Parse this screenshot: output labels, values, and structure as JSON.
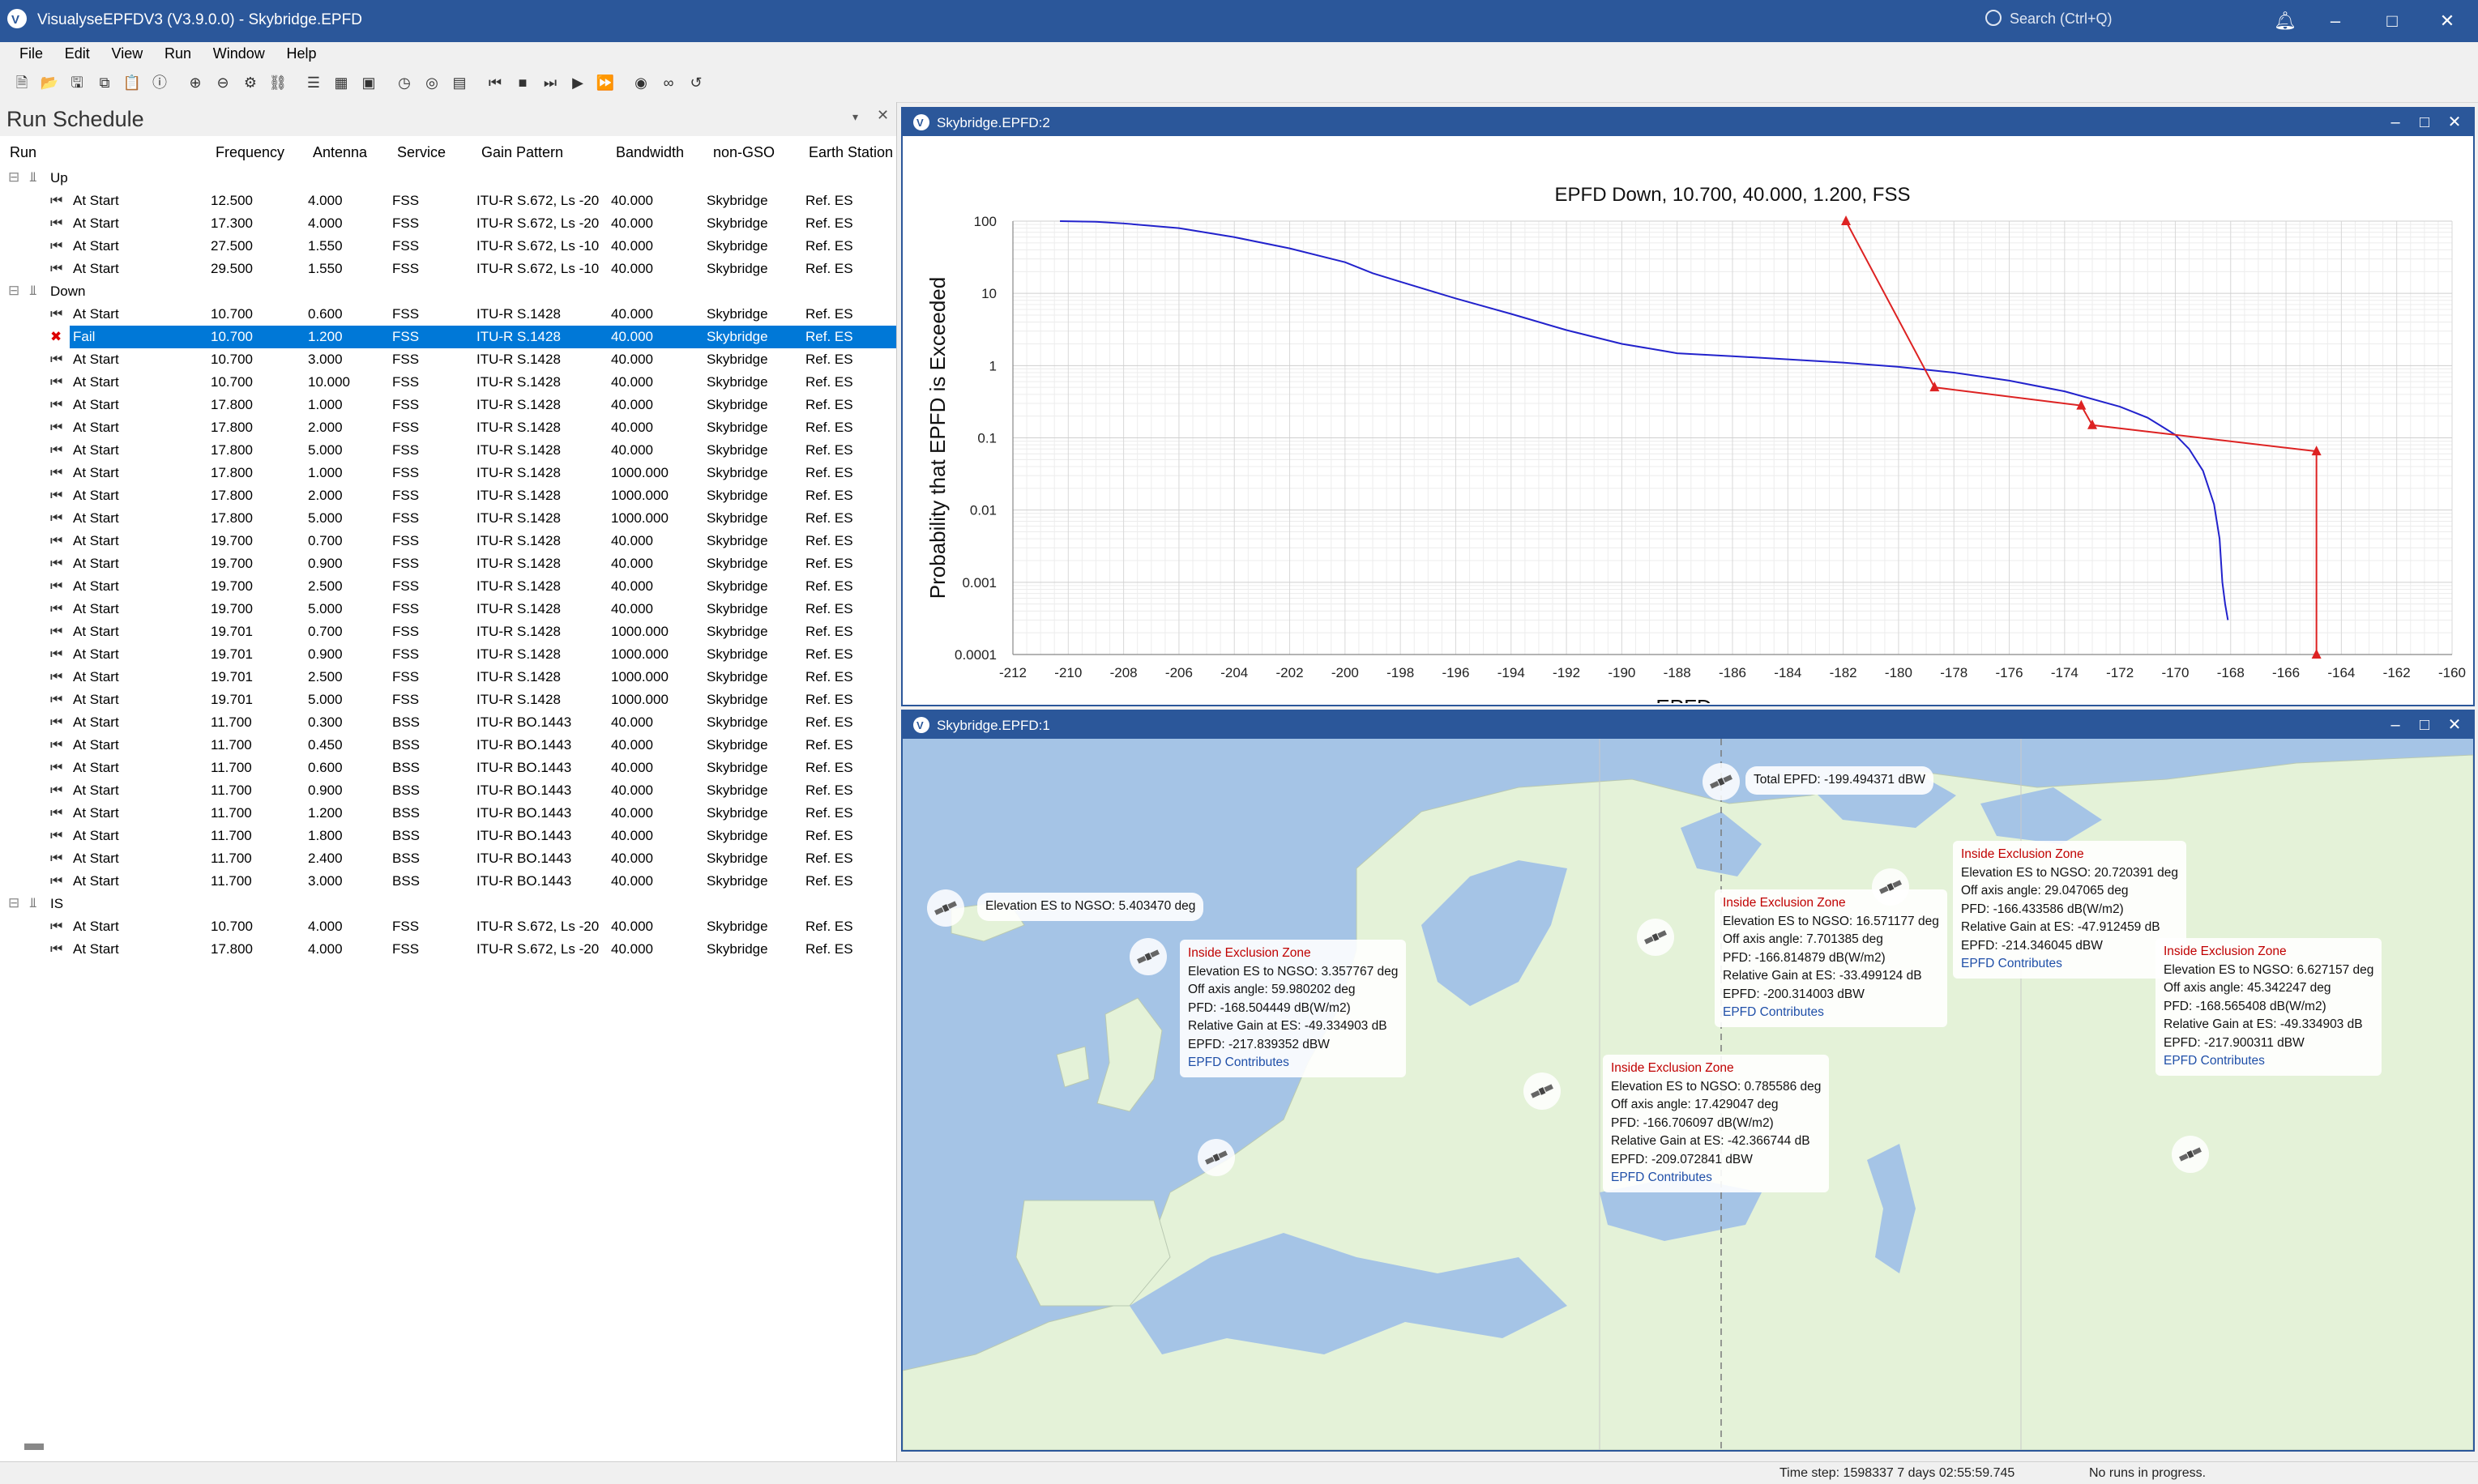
{
  "app": {
    "title": "VisualyseEPFDV3 (V3.9.0.0) - Skybridge.EPFD",
    "search_placeholder": "Search (Ctrl+Q)"
  },
  "menu": [
    "File",
    "Edit",
    "View",
    "Run",
    "Window",
    "Help"
  ],
  "toolbar_icons": [
    "new-icon",
    "open-icon",
    "save-icon",
    "copy-icon",
    "paste-icon",
    "info-icon",
    "zoom-in-icon",
    "zoom-out-icon",
    "settings-icon",
    "link-icon",
    "list-icon",
    "grid-icon",
    "image-icon",
    "clock-icon",
    "globe-icon",
    "table-icon",
    "skip-back-icon",
    "stop-icon",
    "step-icon",
    "play-icon",
    "fast-forward-icon",
    "run-icon",
    "link2-icon",
    "reset-icon"
  ],
  "run_schedule": {
    "title": "Run Schedule",
    "columns": [
      "Run",
      "Frequency",
      "Antenna",
      "Service",
      "Gain Pattern",
      "Bandwidth",
      "non-GSO",
      "Earth Station"
    ],
    "groups": [
      {
        "name": "Up",
        "rows": [
          [
            "At Start",
            "12.500",
            "4.000",
            "FSS",
            "ITU-R S.672, Ls -20",
            "40.000",
            "Skybridge",
            "Ref. ES"
          ],
          [
            "At Start",
            "17.300",
            "4.000",
            "FSS",
            "ITU-R S.672, Ls -20",
            "40.000",
            "Skybridge",
            "Ref. ES"
          ],
          [
            "At Start",
            "27.500",
            "1.550",
            "FSS",
            "ITU-R S.672, Ls -10",
            "40.000",
            "Skybridge",
            "Ref. ES"
          ],
          [
            "At Start",
            "29.500",
            "1.550",
            "FSS",
            "ITU-R S.672, Ls -10",
            "40.000",
            "Skybridge",
            "Ref. ES"
          ]
        ]
      },
      {
        "name": "Down",
        "rows": [
          [
            "At Start",
            "10.700",
            "0.600",
            "FSS",
            "ITU-R S.1428",
            "40.000",
            "Skybridge",
            "Ref. ES"
          ],
          [
            "Fail",
            "10.700",
            "1.200",
            "FSS",
            "ITU-R S.1428",
            "40.000",
            "Skybridge",
            "Ref. ES"
          ],
          [
            "At Start",
            "10.700",
            "3.000",
            "FSS",
            "ITU-R S.1428",
            "40.000",
            "Skybridge",
            "Ref. ES"
          ],
          [
            "At Start",
            "10.700",
            "10.000",
            "FSS",
            "ITU-R S.1428",
            "40.000",
            "Skybridge",
            "Ref. ES"
          ],
          [
            "At Start",
            "17.800",
            "1.000",
            "FSS",
            "ITU-R S.1428",
            "40.000",
            "Skybridge",
            "Ref. ES"
          ],
          [
            "At Start",
            "17.800",
            "2.000",
            "FSS",
            "ITU-R S.1428",
            "40.000",
            "Skybridge",
            "Ref. ES"
          ],
          [
            "At Start",
            "17.800",
            "5.000",
            "FSS",
            "ITU-R S.1428",
            "40.000",
            "Skybridge",
            "Ref. ES"
          ],
          [
            "At Start",
            "17.800",
            "1.000",
            "FSS",
            "ITU-R S.1428",
            "1000.000",
            "Skybridge",
            "Ref. ES"
          ],
          [
            "At Start",
            "17.800",
            "2.000",
            "FSS",
            "ITU-R S.1428",
            "1000.000",
            "Skybridge",
            "Ref. ES"
          ],
          [
            "At Start",
            "17.800",
            "5.000",
            "FSS",
            "ITU-R S.1428",
            "1000.000",
            "Skybridge",
            "Ref. ES"
          ],
          [
            "At Start",
            "19.700",
            "0.700",
            "FSS",
            "ITU-R S.1428",
            "40.000",
            "Skybridge",
            "Ref. ES"
          ],
          [
            "At Start",
            "19.700",
            "0.900",
            "FSS",
            "ITU-R S.1428",
            "40.000",
            "Skybridge",
            "Ref. ES"
          ],
          [
            "At Start",
            "19.700",
            "2.500",
            "FSS",
            "ITU-R S.1428",
            "40.000",
            "Skybridge",
            "Ref. ES"
          ],
          [
            "At Start",
            "19.700",
            "5.000",
            "FSS",
            "ITU-R S.1428",
            "40.000",
            "Skybridge",
            "Ref. ES"
          ],
          [
            "At Start",
            "19.701",
            "0.700",
            "FSS",
            "ITU-R S.1428",
            "1000.000",
            "Skybridge",
            "Ref. ES"
          ],
          [
            "At Start",
            "19.701",
            "0.900",
            "FSS",
            "ITU-R S.1428",
            "1000.000",
            "Skybridge",
            "Ref. ES"
          ],
          [
            "At Start",
            "19.701",
            "2.500",
            "FSS",
            "ITU-R S.1428",
            "1000.000",
            "Skybridge",
            "Ref. ES"
          ],
          [
            "At Start",
            "19.701",
            "5.000",
            "FSS",
            "ITU-R S.1428",
            "1000.000",
            "Skybridge",
            "Ref. ES"
          ],
          [
            "At Start",
            "11.700",
            "0.300",
            "BSS",
            "ITU-R BO.1443",
            "40.000",
            "Skybridge",
            "Ref. ES"
          ],
          [
            "At Start",
            "11.700",
            "0.450",
            "BSS",
            "ITU-R BO.1443",
            "40.000",
            "Skybridge",
            "Ref. ES"
          ],
          [
            "At Start",
            "11.700",
            "0.600",
            "BSS",
            "ITU-R BO.1443",
            "40.000",
            "Skybridge",
            "Ref. ES"
          ],
          [
            "At Start",
            "11.700",
            "0.900",
            "BSS",
            "ITU-R BO.1443",
            "40.000",
            "Skybridge",
            "Ref. ES"
          ],
          [
            "At Start",
            "11.700",
            "1.200",
            "BSS",
            "ITU-R BO.1443",
            "40.000",
            "Skybridge",
            "Ref. ES"
          ],
          [
            "At Start",
            "11.700",
            "1.800",
            "BSS",
            "ITU-R BO.1443",
            "40.000",
            "Skybridge",
            "Ref. ES"
          ],
          [
            "At Start",
            "11.700",
            "2.400",
            "BSS",
            "ITU-R BO.1443",
            "40.000",
            "Skybridge",
            "Ref. ES"
          ],
          [
            "At Start",
            "11.700",
            "3.000",
            "BSS",
            "ITU-R BO.1443",
            "40.000",
            "Skybridge",
            "Ref. ES"
          ]
        ]
      },
      {
        "name": "IS",
        "rows": [
          [
            "At Start",
            "10.700",
            "4.000",
            "FSS",
            "ITU-R S.672, Ls -20",
            "40.000",
            "Skybridge",
            "Ref. ES"
          ],
          [
            "At Start",
            "17.800",
            "4.000",
            "FSS",
            "ITU-R S.672, Ls -20",
            "40.000",
            "Skybridge",
            "Ref. ES"
          ]
        ]
      }
    ],
    "selected_row": "Down.1"
  },
  "chart_window": {
    "title": "Skybridge.EPFD:2"
  },
  "map_window": {
    "title": "Skybridge.EPFD:1"
  },
  "chart_data": {
    "type": "line",
    "title": "EPFD Down, 10.700, 40.000, 1.200, FSS",
    "xlabel": "EPFD",
    "ylabel": "Probability that EPFD is Exceeded",
    "xlim": [
      -212,
      -160
    ],
    "ylim": [
      0.0001,
      100
    ],
    "yscale": "log",
    "xticks": [
      "-212",
      "-210",
      "-208",
      "-206",
      "-204",
      "-202",
      "-200",
      "-198",
      "-196",
      "-194",
      "-192",
      "-190",
      "-188",
      "-186",
      "-184",
      "-182",
      "-180",
      "-178",
      "-176",
      "-174",
      "-172",
      "-170",
      "-168",
      "-166",
      "-164",
      "-162",
      "-160"
    ],
    "yticks": [
      "100",
      "10",
      "1",
      "0.1",
      "0.01",
      "0.001",
      "0.0001"
    ],
    "grid": true,
    "series": [
      {
        "color": "#2222cc",
        "marker": "none",
        "x": [
          -210.3,
          -209,
          -208,
          -206,
          -204,
          -202,
          -200,
          -199,
          -198,
          -196,
          -194,
          -192,
          -190,
          -188.5,
          -188,
          -186,
          -184,
          -182,
          -180,
          -178,
          -176,
          -174,
          -172,
          -171,
          -170,
          -169.5,
          -169,
          -168.6,
          -168.4,
          -168.3,
          -168.2,
          -168.1
        ],
        "y": [
          100,
          98,
          93,
          80,
          60,
          42,
          27,
          19,
          14.5,
          8.5,
          5.2,
          3.1,
          2.0,
          1.6,
          1.48,
          1.35,
          1.22,
          1.1,
          0.96,
          0.8,
          0.62,
          0.44,
          0.27,
          0.19,
          0.11,
          0.07,
          0.035,
          0.012,
          0.004,
          0.001,
          0.0005,
          0.0003
        ]
      },
      {
        "color": "#dd2222",
        "marker": "triangle",
        "x": [
          -181.9,
          -178.7,
          -173.4,
          -173.0,
          -164.9,
          -164.9
        ],
        "y": [
          100,
          0.5,
          0.28,
          0.15,
          0.065,
          0.0001
        ]
      }
    ]
  },
  "map": {
    "total_epfd": "Total EPFD: -199.494371 dBW",
    "elevation_label": "Elevation ES to NGSO: 5.403470 deg",
    "popups": [
      {
        "zone": "Inside Exclusion Zone",
        "lines": [
          "Elevation ES to NGSO: 3.357767 deg",
          "Off axis angle: 59.980202 deg",
          "PFD: -168.504449 dB(W/m2)",
          "Relative Gain at ES: -49.334903 dB",
          "EPFD: -217.839352 dBW"
        ],
        "link": "EPFD Contributes"
      },
      {
        "zone": "Inside Exclusion Zone",
        "lines": [
          "Elevation ES to NGSO: 16.571177 deg",
          "Off axis angle: 7.701385 deg",
          "PFD: -166.814879 dB(W/m2)",
          "Relative Gain at ES: -33.499124 dB",
          "EPFD: -200.314003 dBW"
        ],
        "link": "EPFD Contributes"
      },
      {
        "zone": "Inside Exclusion Zone",
        "lines": [
          "Elevation ES to NGSO: 20.720391 deg",
          "Off axis angle: 29.047065 deg",
          "PFD: -166.433586 dB(W/m2)",
          "Relative Gain at ES: -47.912459 dB",
          "EPFD: -214.346045 dBW"
        ],
        "link": "EPFD Contributes"
      },
      {
        "zone": "Inside Exclusion Zone",
        "lines": [
          "Elevation ES to NGSO: 6.627157 deg",
          "Off axis angle: 45.342247 deg",
          "PFD: -168.565408 dB(W/m2)",
          "Relative Gain at ES: -49.334903 dB",
          "EPFD: -217.900311 dBW"
        ],
        "link": "EPFD Contributes"
      },
      {
        "zone": "Inside Exclusion Zone",
        "lines": [
          "Elevation ES to NGSO: 0.785586 deg",
          "Off axis angle: 17.429047 deg",
          "PFD: -166.706097 dB(W/m2)",
          "Relative Gain at ES: -42.366744 dB",
          "EPFD: -209.072841 dBW"
        ],
        "link": "EPFD Contributes"
      }
    ]
  },
  "status": {
    "time_step": "Time step: 1598337 7 days 02:55:59.745",
    "runs": "No runs in progress."
  },
  "colors": {
    "titlebar": "#2b579a",
    "selection": "#0078d7",
    "sea": "#a5c4e6",
    "land": "#e4f2d8"
  }
}
